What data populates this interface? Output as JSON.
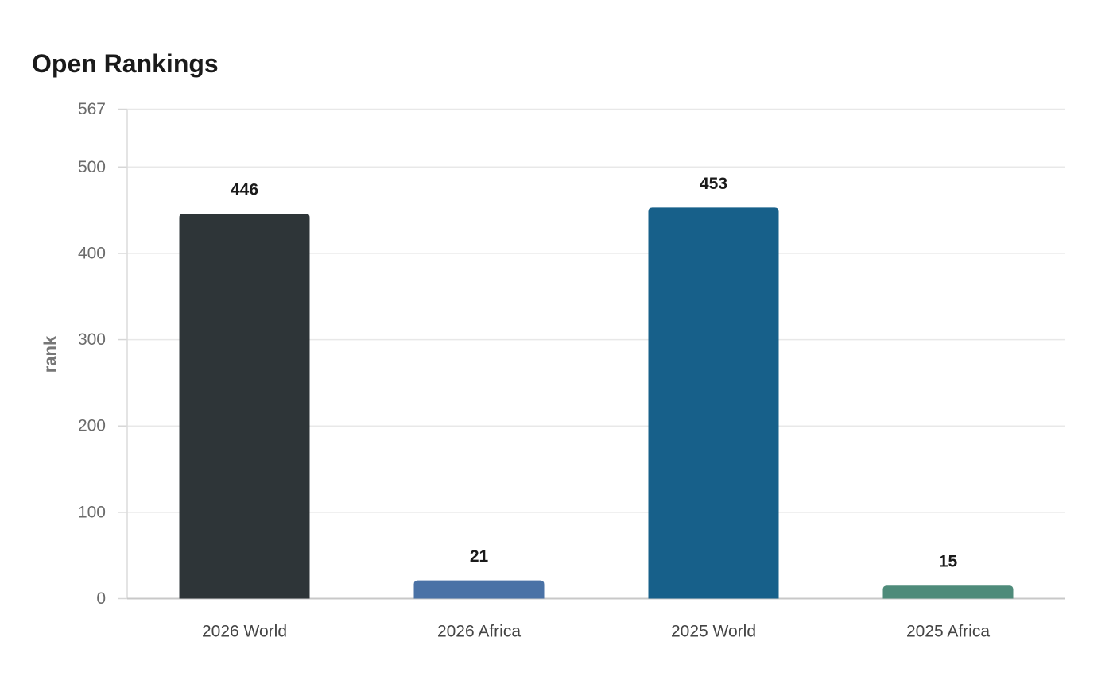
{
  "chart_data": {
    "type": "bar",
    "title": "Open Rankings",
    "xlabel": "",
    "ylabel": "rank",
    "categories": [
      "2026 World",
      "2026 Africa",
      "2025 World",
      "2025 Africa"
    ],
    "values": [
      446,
      21,
      453,
      15
    ],
    "colors": [
      "#2e3538",
      "#4a72a6",
      "#17608a",
      "#4e8b7a"
    ],
    "ylim": [
      0,
      567
    ],
    "yticks": [
      0,
      100,
      200,
      300,
      400,
      500,
      567
    ],
    "grid": true,
    "legend": "none"
  }
}
